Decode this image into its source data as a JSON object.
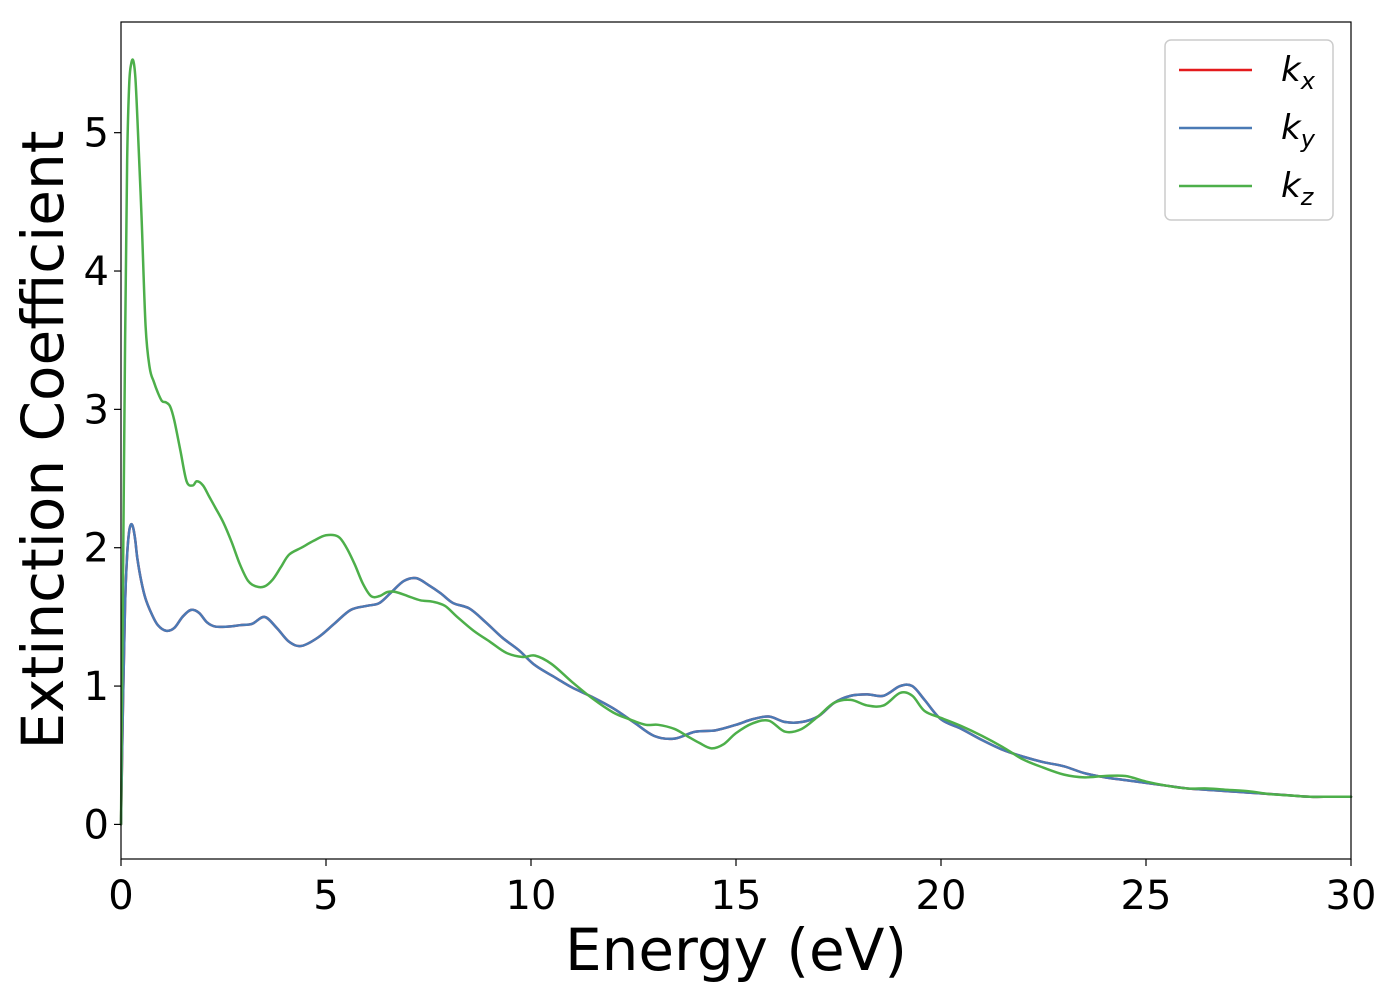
{
  "chart_data": {
    "type": "line",
    "xlabel": "Energy (eV)",
    "ylabel": "Extinction Coefficient",
    "xlim": [
      0,
      30
    ],
    "ylim": [
      -0.25,
      5.8
    ],
    "xticks": [
      0,
      5,
      10,
      15,
      20,
      25,
      30
    ],
    "yticks": [
      0,
      1,
      2,
      3,
      4,
      5
    ],
    "xtick_labels": [
      "0",
      "5",
      "10",
      "15",
      "20",
      "25",
      "30"
    ],
    "ytick_labels": [
      "0",
      "1",
      "2",
      "3",
      "4",
      "5"
    ],
    "grid": false,
    "legend_position": "top-right",
    "series": [
      {
        "name": "k_x",
        "label_base": "k",
        "label_sub": "x",
        "color": "#e41a1c",
        "x": [
          0,
          0.05,
          0.1,
          0.15,
          0.2,
          0.25,
          0.3,
          0.35,
          0.4,
          0.5,
          0.6,
          0.75,
          0.9,
          1.1,
          1.3,
          1.5,
          1.7,
          1.9,
          2.1,
          2.3,
          2.6,
          2.9,
          3.2,
          3.5,
          3.8,
          4.1,
          4.4,
          4.8,
          5.2,
          5.6,
          6.0,
          6.3,
          6.6,
          6.9,
          7.2,
          7.5,
          7.8,
          8.1,
          8.5,
          8.9,
          9.3,
          9.7,
          10.1,
          10.6,
          11.0,
          11.5,
          12.0,
          12.5,
          13.0,
          13.5,
          14.0,
          14.5,
          15.0,
          15.4,
          15.8,
          16.2,
          16.6,
          17.0,
          17.4,
          17.8,
          18.2,
          18.6,
          19.0,
          19.3,
          19.6,
          20.0,
          20.5,
          21.0,
          21.5,
          22.0,
          22.5,
          23.0,
          23.5,
          24.0,
          24.5,
          25.0,
          25.5,
          26.0,
          26.5,
          27.0,
          27.5,
          28.0,
          28.5,
          29.0,
          29.5,
          30.0
        ],
        "y": [
          0.0,
          0.9,
          1.6,
          1.95,
          2.12,
          2.17,
          2.14,
          2.05,
          1.92,
          1.75,
          1.63,
          1.52,
          1.44,
          1.4,
          1.42,
          1.5,
          1.55,
          1.53,
          1.46,
          1.43,
          1.43,
          1.44,
          1.45,
          1.5,
          1.42,
          1.32,
          1.29,
          1.35,
          1.45,
          1.55,
          1.58,
          1.6,
          1.68,
          1.76,
          1.78,
          1.73,
          1.67,
          1.6,
          1.56,
          1.46,
          1.35,
          1.26,
          1.15,
          1.06,
          0.99,
          0.92,
          0.84,
          0.74,
          0.64,
          0.62,
          0.67,
          0.68,
          0.72,
          0.76,
          0.78,
          0.74,
          0.74,
          0.78,
          0.88,
          0.93,
          0.94,
          0.93,
          1.0,
          1.0,
          0.9,
          0.76,
          0.69,
          0.61,
          0.54,
          0.49,
          0.45,
          0.42,
          0.37,
          0.34,
          0.32,
          0.3,
          0.28,
          0.26,
          0.25,
          0.24,
          0.23,
          0.22,
          0.21,
          0.2,
          0.2,
          0.2
        ]
      },
      {
        "name": "k_y",
        "label_base": "k",
        "label_sub": "y",
        "color": "#4a7ab5",
        "x": [
          0,
          0.05,
          0.1,
          0.15,
          0.2,
          0.25,
          0.3,
          0.35,
          0.4,
          0.5,
          0.6,
          0.75,
          0.9,
          1.1,
          1.3,
          1.5,
          1.7,
          1.9,
          2.1,
          2.3,
          2.6,
          2.9,
          3.2,
          3.5,
          3.8,
          4.1,
          4.4,
          4.8,
          5.2,
          5.6,
          6.0,
          6.3,
          6.6,
          6.9,
          7.2,
          7.5,
          7.8,
          8.1,
          8.5,
          8.9,
          9.3,
          9.7,
          10.1,
          10.6,
          11.0,
          11.5,
          12.0,
          12.5,
          13.0,
          13.5,
          14.0,
          14.5,
          15.0,
          15.4,
          15.8,
          16.2,
          16.6,
          17.0,
          17.4,
          17.8,
          18.2,
          18.6,
          19.0,
          19.3,
          19.6,
          20.0,
          20.5,
          21.0,
          21.5,
          22.0,
          22.5,
          23.0,
          23.5,
          24.0,
          24.5,
          25.0,
          25.5,
          26.0,
          26.5,
          27.0,
          27.5,
          28.0,
          28.5,
          29.0,
          29.5,
          30.0
        ],
        "y": [
          0.0,
          0.9,
          1.6,
          1.95,
          2.12,
          2.17,
          2.14,
          2.05,
          1.92,
          1.75,
          1.63,
          1.52,
          1.44,
          1.4,
          1.42,
          1.5,
          1.55,
          1.53,
          1.46,
          1.43,
          1.43,
          1.44,
          1.45,
          1.5,
          1.42,
          1.32,
          1.29,
          1.35,
          1.45,
          1.55,
          1.58,
          1.6,
          1.68,
          1.76,
          1.78,
          1.73,
          1.67,
          1.6,
          1.56,
          1.46,
          1.35,
          1.26,
          1.15,
          1.06,
          0.99,
          0.92,
          0.84,
          0.74,
          0.64,
          0.62,
          0.67,
          0.68,
          0.72,
          0.76,
          0.78,
          0.74,
          0.74,
          0.78,
          0.88,
          0.93,
          0.94,
          0.93,
          1.0,
          1.0,
          0.9,
          0.76,
          0.69,
          0.61,
          0.54,
          0.49,
          0.45,
          0.42,
          0.37,
          0.34,
          0.32,
          0.3,
          0.28,
          0.26,
          0.25,
          0.24,
          0.23,
          0.22,
          0.21,
          0.2,
          0.2,
          0.2
        ]
      },
      {
        "name": "k_z",
        "label_base": "k",
        "label_sub": "z",
        "color": "#4daf4a",
        "x": [
          0,
          0.05,
          0.1,
          0.15,
          0.2,
          0.25,
          0.3,
          0.35,
          0.4,
          0.5,
          0.6,
          0.7,
          0.8,
          0.9,
          1.0,
          1.1,
          1.2,
          1.3,
          1.45,
          1.6,
          1.75,
          1.85,
          2.0,
          2.15,
          2.3,
          2.5,
          2.7,
          2.9,
          3.1,
          3.3,
          3.5,
          3.7,
          3.9,
          4.1,
          4.4,
          4.7,
          5.0,
          5.3,
          5.5,
          5.7,
          5.9,
          6.1,
          6.3,
          6.5,
          6.7,
          7.0,
          7.3,
          7.6,
          7.9,
          8.2,
          8.6,
          9.0,
          9.4,
          9.8,
          10.1,
          10.5,
          11.0,
          11.5,
          12.0,
          12.4,
          12.8,
          13.1,
          13.5,
          13.8,
          14.1,
          14.4,
          14.7,
          15.0,
          15.4,
          15.8,
          16.2,
          16.6,
          17.0,
          17.4,
          17.8,
          18.2,
          18.6,
          19.0,
          19.3,
          19.6,
          20.0,
          20.5,
          21.0,
          21.5,
          22.0,
          22.5,
          23.0,
          23.5,
          24.0,
          24.5,
          25.0,
          25.5,
          26.0,
          26.5,
          27.0,
          27.5,
          28.0,
          28.5,
          29.0,
          29.5,
          30.0
        ],
        "y": [
          0.0,
          1.8,
          3.5,
          4.8,
          5.35,
          5.5,
          5.52,
          5.4,
          5.1,
          4.4,
          3.6,
          3.3,
          3.2,
          3.12,
          3.06,
          3.05,
          3.02,
          2.92,
          2.7,
          2.48,
          2.45,
          2.48,
          2.45,
          2.37,
          2.29,
          2.18,
          2.04,
          1.88,
          1.76,
          1.72,
          1.72,
          1.77,
          1.86,
          1.95,
          2.0,
          2.05,
          2.09,
          2.08,
          2.0,
          1.88,
          1.74,
          1.65,
          1.65,
          1.68,
          1.68,
          1.65,
          1.62,
          1.61,
          1.58,
          1.5,
          1.4,
          1.32,
          1.24,
          1.21,
          1.22,
          1.16,
          1.03,
          0.91,
          0.81,
          0.76,
          0.72,
          0.72,
          0.69,
          0.64,
          0.59,
          0.55,
          0.58,
          0.66,
          0.73,
          0.75,
          0.67,
          0.69,
          0.78,
          0.88,
          0.9,
          0.86,
          0.86,
          0.95,
          0.93,
          0.82,
          0.77,
          0.71,
          0.64,
          0.56,
          0.47,
          0.41,
          0.36,
          0.34,
          0.35,
          0.35,
          0.31,
          0.28,
          0.26,
          0.26,
          0.25,
          0.24,
          0.22,
          0.21,
          0.2,
          0.2,
          0.2
        ]
      }
    ]
  }
}
